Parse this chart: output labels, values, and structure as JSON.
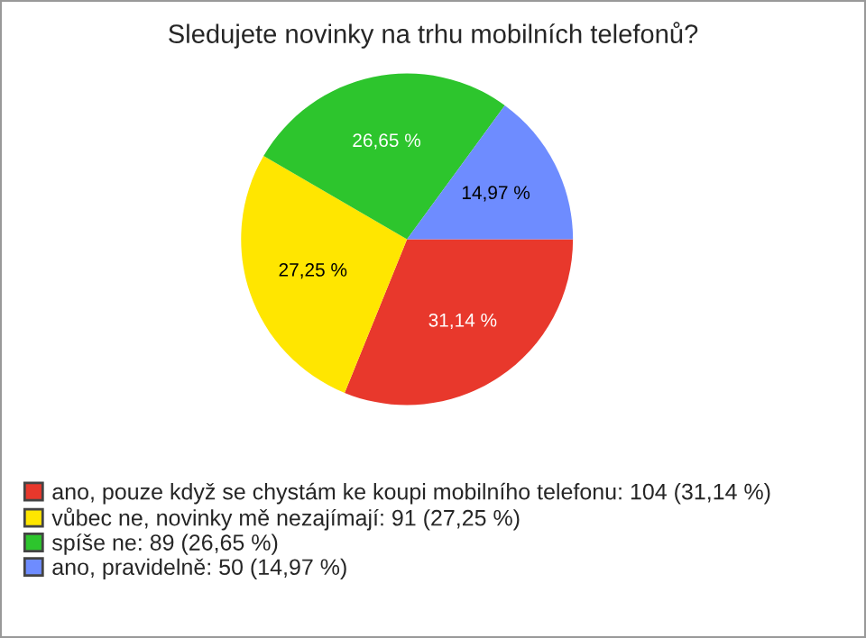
{
  "chart_data": {
    "type": "pie",
    "title": "Sledujete novinky na trhu mobilních telefonů?",
    "categories": [
      "ano, pouze když se chystám ke koupi mobilního telefonu: 104 (31,14 %)",
      "vůbec ne, novinky mě nezajímají: 91 (27,25 %)",
      "spíše ne: 89 (26,65 %)",
      "ano, pravidelně: 50 (14,97 %)"
    ],
    "values": [
      31.14,
      27.25,
      26.65,
      14.97
    ],
    "value_labels": [
      "31,14 %",
      "27,25 %",
      "26,65 %",
      "14,97 %"
    ],
    "colors": [
      "#e8382c",
      "#ffe600",
      "#2dc52d",
      "#6e8cff"
    ],
    "legend": "bottom left"
  }
}
